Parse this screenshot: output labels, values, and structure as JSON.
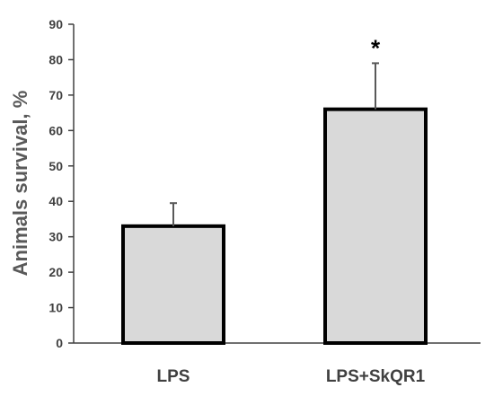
{
  "chart_data": {
    "type": "bar",
    "categories": [
      "LPS",
      "LPS+SkQR1"
    ],
    "values": [
      33,
      66
    ],
    "error_bars": [
      6.5,
      13
    ],
    "annotations": [
      "",
      "*"
    ],
    "ylabel": "Animals survival, %",
    "xlabel": "",
    "ylim": [
      0,
      90
    ],
    "yticks": [
      "0",
      "10",
      "20",
      "30",
      "40",
      "50",
      "60",
      "70",
      "80",
      "90"
    ],
    "grid": false,
    "legend": "none",
    "colors": {
      "bar_fill": "#d9d9d9",
      "bar_stroke": "#000000",
      "error_bar": "#595959",
      "axis": "#404040",
      "text": "#404040"
    }
  }
}
